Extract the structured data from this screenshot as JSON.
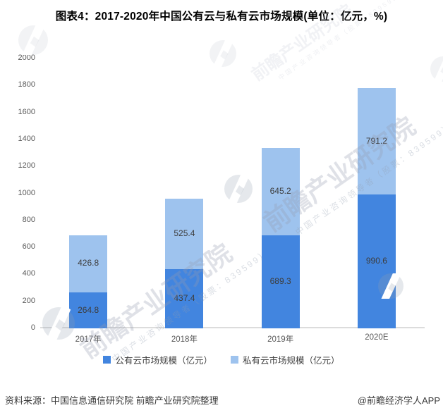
{
  "title": "图表4：2017-2020年中国公有云与私有云市场规模(单位：亿元，%)",
  "chart_data": {
    "type": "bar",
    "stacked": true,
    "title": "图表4：2017-2020年中国公有云与私有云市场规模(单位：亿元，%)",
    "categories": [
      "2017年",
      "2018年",
      "2019年",
      "2020E"
    ],
    "series": [
      {
        "name": "公有云市场规模（亿元）",
        "color": "#4285DF",
        "values": [
          264.8,
          437.4,
          689.3,
          990.6
        ]
      },
      {
        "name": "私有云市场规模（亿元）",
        "color": "#9EC3EE",
        "values": [
          426.8,
          525.4,
          645.2,
          791.2
        ]
      }
    ],
    "ylim": [
      0,
      2000
    ],
    "y_step": 200,
    "grid": false,
    "legend_position": "bottom",
    "value_labels": true,
    "axis_line_color": "#DCDCDC",
    "tick_text_color": "#595959",
    "value_text_color": "#3D3D3D"
  },
  "footer": {
    "source": "资料来源：中国信息通信研究院 前瞻产业研究院整理",
    "credit": "@前瞻经济学人APP"
  },
  "watermark": {
    "text": "前瞻产业研究院",
    "subtext": "中国产业咨询领导者（股票：839599）"
  }
}
